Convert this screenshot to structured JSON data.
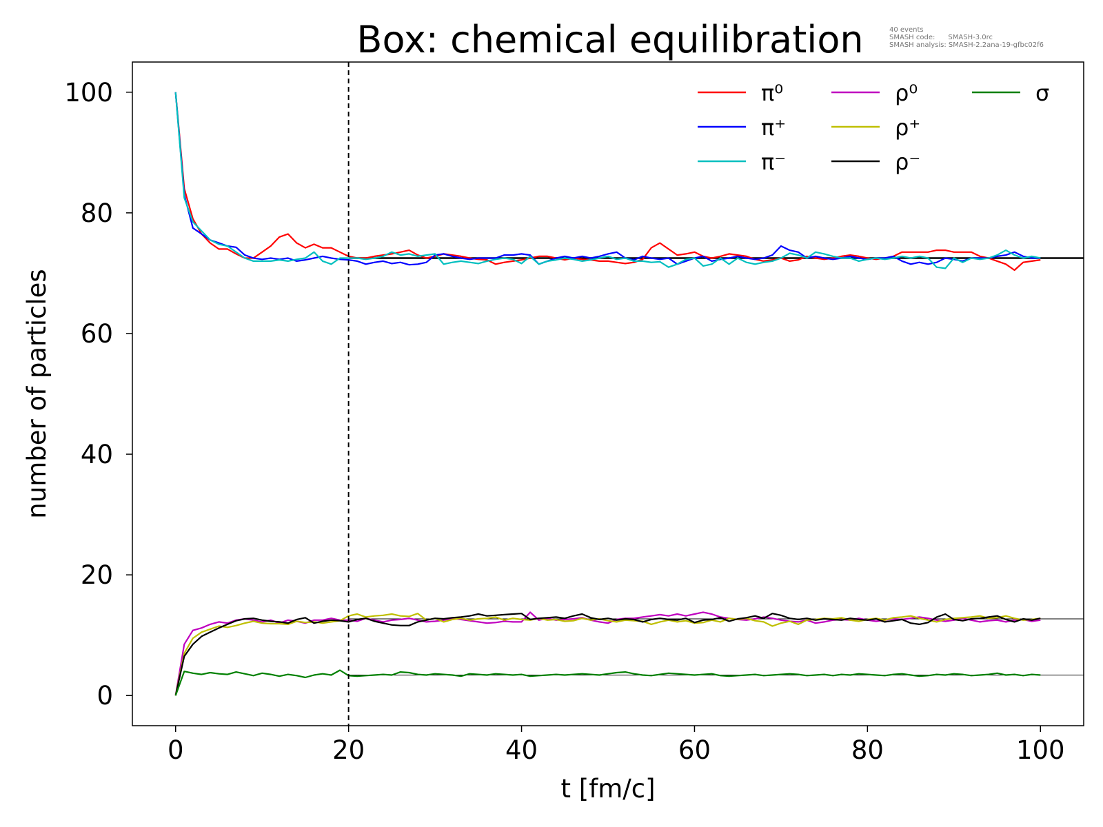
{
  "chart_data": {
    "type": "line",
    "title": "Box: chemical equilibration",
    "meta_text": [
      "40 events",
      "SMASH code:      SMASH-3.0rc",
      "SMASH analysis: SMASH-2.2ana-19-gfbc02f6"
    ],
    "xlabel": "t [fm/c]",
    "ylabel": "number of particles",
    "xlim": [
      -5,
      105
    ],
    "ylim": [
      -5,
      105
    ],
    "x_ticks": [
      0,
      20,
      40,
      60,
      80,
      100
    ],
    "y_ticks": [
      0,
      20,
      40,
      60,
      80,
      100
    ],
    "grid": false,
    "legend_position": "top-right",
    "vline": 20,
    "reference_levels": [
      72.5,
      12.7,
      3.4
    ],
    "x": [
      0,
      1,
      2,
      3,
      4,
      5,
      6,
      7,
      8,
      9,
      10,
      11,
      12,
      13,
      14,
      15,
      16,
      17,
      18,
      19,
      20,
      21,
      22,
      23,
      24,
      25,
      26,
      27,
      28,
      29,
      30,
      31,
      32,
      33,
      34,
      35,
      36,
      37,
      38,
      39,
      40,
      41,
      42,
      43,
      44,
      45,
      46,
      47,
      48,
      49,
      50,
      51,
      52,
      53,
      54,
      55,
      56,
      57,
      58,
      59,
      60,
      61,
      62,
      63,
      64,
      65,
      66,
      67,
      68,
      69,
      70,
      71,
      72,
      73,
      74,
      75,
      76,
      77,
      78,
      79,
      80,
      81,
      82,
      83,
      84,
      85,
      86,
      87,
      88,
      89,
      90,
      91,
      92,
      93,
      94,
      95,
      96,
      97,
      98,
      99,
      100
    ],
    "series": [
      {
        "name": "π⁰",
        "color": "#ff0000",
        "values": [
          100,
          84,
          79,
          76.5,
          75,
          74,
          74,
          73.2,
          72.5,
          72.5,
          73.5,
          74.5,
          76,
          76.5,
          75,
          74.2,
          74.8,
          74.2,
          74.2,
          73.5,
          72.8,
          72.5,
          72.5,
          72.8,
          73,
          73.2,
          73.5,
          73.8,
          73,
          72.5,
          72.8,
          73.2,
          73,
          72.8,
          72.5,
          72.3,
          72.2,
          71.5,
          71.8,
          72,
          72.2,
          72.5,
          72.8,
          72.8,
          72.5,
          72.2,
          72.5,
          72.3,
          72.2,
          72,
          72,
          71.8,
          71.6,
          71.8,
          72.3,
          74.2,
          75,
          74,
          73,
          73.2,
          73.5,
          72.8,
          72.5,
          72.8,
          73.2,
          73,
          72.8,
          72.3,
          72,
          72.2,
          72.5,
          72,
          72.2,
          72.8,
          72.5,
          72.3,
          72.5,
          72.8,
          73,
          72.8,
          72.5,
          72.3,
          72.5,
          72.8,
          73.5,
          73.5,
          73.5,
          73.5,
          73.8,
          73.8,
          73.5,
          73.5,
          73.5,
          72.8,
          72.5,
          72,
          71.5,
          70.5,
          71.8,
          72,
          72.2
        ]
      },
      {
        "name": "π⁺",
        "color": "#0000ff",
        "values": [
          100,
          83,
          77.5,
          76.5,
          75.5,
          75,
          74.5,
          74.3,
          73,
          72.5,
          72.3,
          72.5,
          72.3,
          72.5,
          72,
          72.2,
          72.5,
          72.8,
          72.5,
          72.3,
          72.2,
          72,
          71.5,
          71.8,
          72,
          71.6,
          71.8,
          71.4,
          71.5,
          71.8,
          73,
          73.2,
          72.8,
          72.5,
          72.3,
          72.5,
          72.5,
          72.5,
          73,
          73,
          73.2,
          73,
          71.5,
          72,
          72.5,
          72.8,
          72.5,
          72.8,
          72.5,
          72.8,
          73.2,
          73.5,
          72.5,
          72.2,
          72.8,
          72.5,
          72.3,
          72.5,
          71.5,
          72,
          72.5,
          72.8,
          72,
          72.3,
          72.5,
          72.8,
          72.5,
          72.3,
          72.5,
          73,
          74.5,
          73.8,
          73.5,
          72.5,
          72.8,
          72.5,
          72.3,
          72.5,
          72.8,
          72.5,
          72.3,
          72.5,
          72.5,
          72.8,
          72,
          71.5,
          71.8,
          71.5,
          71.8,
          72.5,
          72.3,
          72,
          72.5,
          72.5,
          72.5,
          72.8,
          73,
          73.5,
          72.8,
          72.5,
          72.5
        ]
      },
      {
        "name": "π⁻",
        "color": "#00bfbf",
        "values": [
          100,
          82.5,
          78.5,
          77,
          75.5,
          74.8,
          74.5,
          73.5,
          72.5,
          72,
          72,
          72,
          72.2,
          72,
          72.3,
          72.5,
          73.5,
          72,
          71.5,
          72.5,
          72.5,
          72.5,
          72.3,
          72.5,
          72.8,
          73.5,
          73,
          73.2,
          72.8,
          73,
          73.2,
          71.5,
          71.8,
          72,
          71.8,
          71.6,
          72,
          72.3,
          72.5,
          72.3,
          71.6,
          72.8,
          71.5,
          72,
          72.2,
          72.5,
          72.3,
          72,
          72.2,
          72.5,
          72.8,
          72.3,
          72.5,
          72,
          72,
          71.8,
          71.9,
          71,
          71.5,
          72.3,
          72.5,
          71.2,
          71.5,
          72.5,
          71.5,
          72.5,
          71.8,
          71.5,
          71.8,
          72,
          72.5,
          73.3,
          73,
          72.5,
          73.5,
          73.2,
          72.8,
          72.5,
          72.5,
          72,
          72.3,
          72.5,
          72.3,
          72.5,
          72.8,
          72.5,
          72.8,
          72.5,
          71,
          70.8,
          72.5,
          71.8,
          72.5,
          72.3,
          72.5,
          73,
          73.8,
          73,
          72.5,
          72.8,
          72.5
        ]
      },
      {
        "name": "ρ⁰",
        "color": "#bf00bf",
        "values": [
          0,
          8.5,
          10.8,
          11.2,
          11.8,
          12.2,
          12,
          12.5,
          12.7,
          12.5,
          12.2,
          12.5,
          12,
          12.5,
          12.3,
          12,
          12.5,
          12.5,
          12.8,
          12.5,
          12.5,
          12.3,
          12.8,
          12.5,
          12.2,
          12.5,
          12.6,
          12.8,
          12.5,
          12.2,
          12.3,
          12.5,
          12.8,
          12.6,
          12.4,
          12.2,
          12,
          12.1,
          12.3,
          12.2,
          12.2,
          13.8,
          12.5,
          12.8,
          12.5,
          12.6,
          12.7,
          12.9,
          12.5,
          12.2,
          12,
          12.6,
          12.8,
          12.8,
          13,
          13.2,
          13.4,
          13.2,
          13.5,
          13.2,
          13.5,
          13.8,
          13.5,
          13,
          12.8,
          12.6,
          12.5,
          12.7,
          13,
          12.8,
          12.5,
          12.3,
          12.2,
          12.5,
          12,
          12.2,
          12.5,
          12.6,
          12.5,
          12.8,
          12.5,
          12.3,
          12.5,
          12.7,
          12.6,
          12.8,
          13,
          12.8,
          12.5,
          12.3,
          12.5,
          12.8,
          12.5,
          12.2,
          12.4,
          12.5,
          12.2,
          12.5,
          12.6,
          12.3,
          12.5
        ]
      },
      {
        "name": "ρ⁺",
        "color": "#bfbf00",
        "values": [
          0,
          7,
          9.5,
          10.5,
          11,
          11.5,
          11.3,
          11.6,
          12,
          12.3,
          12,
          11.9,
          11.9,
          11.8,
          12.3,
          12.1,
          12.2,
          12,
          12.2,
          12.4,
          13.2,
          13.5,
          13,
          13.2,
          13.3,
          13.5,
          13.2,
          13.1,
          13.6,
          12.5,
          12.8,
          12.2,
          12.6,
          12.8,
          12.5,
          12.7,
          12.8,
          13,
          12.5,
          12.8,
          12.6,
          12.5,
          12.8,
          12.5,
          12.6,
          12.3,
          12.4,
          12.8,
          12.5,
          12.7,
          12.4,
          12.2,
          12.5,
          12.4,
          12.3,
          11.8,
          12.2,
          12.5,
          12.2,
          12.4,
          12,
          12.1,
          12.5,
          12.2,
          12.8,
          12.6,
          12.8,
          12.4,
          12.2,
          11.5,
          12,
          12.3,
          11.8,
          12.5,
          12.6,
          12.8,
          12.7,
          12.9,
          12.5,
          12.3,
          12.6,
          12.8,
          12.5,
          12.9,
          13,
          13.2,
          12.8,
          12.5,
          12.2,
          12.6,
          12.8,
          12.9,
          13,
          13.2,
          12.8,
          12.9,
          13.2,
          12.8,
          12.5,
          12.6,
          12.8
        ]
      },
      {
        "name": "ρ⁻",
        "color": "#000000",
        "values": [
          0,
          6.5,
          8.5,
          9.8,
          10.5,
          11.2,
          11.8,
          12.4,
          12.7,
          12.8,
          12.5,
          12.3,
          12.2,
          12,
          12.6,
          12.9,
          12,
          12.3,
          12.5,
          12.4,
          12.2,
          12.6,
          12.8,
          12.3,
          12,
          11.7,
          11.6,
          11.6,
          12.2,
          12.5,
          12.8,
          12.7,
          12.9,
          13,
          13.2,
          13.5,
          13.2,
          13.3,
          13.4,
          13.5,
          13.6,
          12.6,
          12.8,
          12.9,
          13,
          12.8,
          13.2,
          13.5,
          12.9,
          12.6,
          12.8,
          12.5,
          12.7,
          12.6,
          12.2,
          12.6,
          12.8,
          12.6,
          12.5,
          12.8,
          12.1,
          12.5,
          12.6,
          12.9,
          12.3,
          12.7,
          12.9,
          13.2,
          12.8,
          13.6,
          13.3,
          12.8,
          12.6,
          12.8,
          12.5,
          12.7,
          12.6,
          12.5,
          12.8,
          12.6,
          12.5,
          12.7,
          12.2,
          12.4,
          12.6,
          12,
          11.8,
          12.1,
          13,
          13.5,
          12.6,
          12.4,
          12.7,
          12.8,
          13,
          13.2,
          12.6,
          12.2,
          12.7,
          12.5,
          12.8
        ]
      },
      {
        "name": "σ",
        "color": "#008000",
        "values": [
          0,
          4,
          3.7,
          3.5,
          3.8,
          3.6,
          3.5,
          3.9,
          3.6,
          3.3,
          3.7,
          3.5,
          3.2,
          3.5,
          3.3,
          3,
          3.4,
          3.6,
          3.4,
          4.2,
          3.3,
          3.2,
          3.3,
          3.4,
          3.5,
          3.4,
          3.9,
          3.8,
          3.5,
          3.4,
          3.6,
          3.5,
          3.4,
          3.2,
          3.6,
          3.5,
          3.4,
          3.6,
          3.5,
          3.4,
          3.5,
          3.2,
          3.3,
          3.4,
          3.5,
          3.4,
          3.5,
          3.6,
          3.5,
          3.4,
          3.6,
          3.8,
          3.9,
          3.6,
          3.4,
          3.3,
          3.5,
          3.7,
          3.6,
          3.5,
          3.4,
          3.5,
          3.6,
          3.3,
          3.2,
          3.3,
          3.4,
          3.5,
          3.3,
          3.4,
          3.5,
          3.6,
          3.5,
          3.3,
          3.4,
          3.5,
          3.3,
          3.5,
          3.4,
          3.6,
          3.5,
          3.4,
          3.3,
          3.5,
          3.6,
          3.4,
          3.2,
          3.3,
          3.5,
          3.4,
          3.6,
          3.5,
          3.3,
          3.4,
          3.5,
          3.7,
          3.4,
          3.5,
          3.3,
          3.5,
          3.4
        ]
      }
    ]
  }
}
